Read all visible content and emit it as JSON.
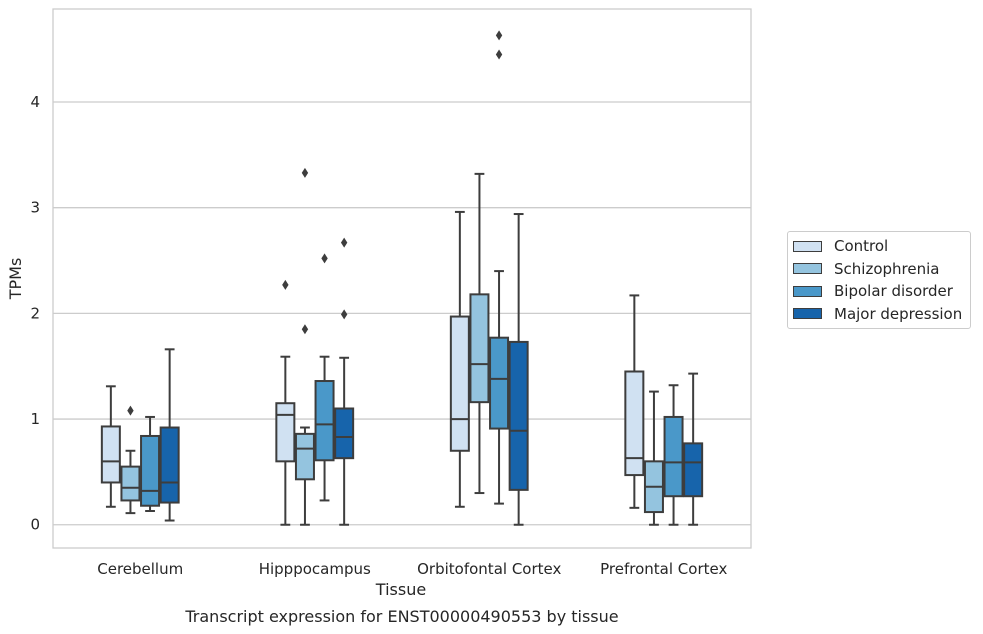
{
  "chart_data": {
    "type": "box",
    "title": "Transcript expression for ENST00000490553 by tissue",
    "xlabel": "Tissue",
    "ylabel": "TPMs",
    "ylim": [
      -0.22,
      4.88
    ],
    "yticks": [
      0,
      1,
      2,
      3,
      4
    ],
    "grid": "horizontal",
    "legend_position": "right",
    "categories": [
      "Cerebellum",
      "Hipppocampus",
      "Orbitofontal Cortex",
      "Prefrontal Cortex"
    ],
    "series": [
      {
        "name": "Control",
        "color": "#d0e1f2",
        "boxes": [
          {
            "whislo": 0.17,
            "q1": 0.4,
            "med": 0.6,
            "q3": 0.93,
            "whishi": 1.31,
            "fliers": []
          },
          {
            "whislo": 0.0,
            "q1": 0.6,
            "med": 1.04,
            "q3": 1.15,
            "whishi": 1.59,
            "fliers": [
              2.27
            ]
          },
          {
            "whislo": 0.17,
            "q1": 0.7,
            "med": 1.0,
            "q3": 1.97,
            "whishi": 2.96,
            "fliers": []
          },
          {
            "whislo": 0.16,
            "q1": 0.47,
            "med": 0.63,
            "q3": 1.45,
            "whishi": 2.17,
            "fliers": []
          }
        ]
      },
      {
        "name": "Schizophrenia",
        "color": "#94c4df",
        "boxes": [
          {
            "whislo": 0.11,
            "q1": 0.23,
            "med": 0.35,
            "q3": 0.55,
            "whishi": 0.7,
            "fliers": [
              1.08
            ]
          },
          {
            "whislo": 0.0,
            "q1": 0.43,
            "med": 0.72,
            "q3": 0.86,
            "whishi": 0.92,
            "fliers": [
              1.85,
              3.33
            ]
          },
          {
            "whislo": 0.3,
            "q1": 1.16,
            "med": 1.52,
            "q3": 2.18,
            "whishi": 3.32,
            "fliers": []
          },
          {
            "whislo": 0.0,
            "q1": 0.12,
            "med": 0.36,
            "q3": 0.6,
            "whishi": 1.26,
            "fliers": []
          }
        ]
      },
      {
        "name": "Bipolar disorder",
        "color": "#4a98c9",
        "boxes": [
          {
            "whislo": 0.13,
            "q1": 0.18,
            "med": 0.32,
            "q3": 0.84,
            "whishi": 1.02,
            "fliers": []
          },
          {
            "whislo": 0.23,
            "q1": 0.61,
            "med": 0.95,
            "q3": 1.36,
            "whishi": 1.59,
            "fliers": [
              2.52
            ]
          },
          {
            "whislo": 0.2,
            "q1": 0.91,
            "med": 1.38,
            "q3": 1.77,
            "whishi": 2.4,
            "fliers": [
              4.45,
              4.63
            ]
          },
          {
            "whislo": 0.0,
            "q1": 0.27,
            "med": 0.59,
            "q3": 1.02,
            "whishi": 1.32,
            "fliers": []
          }
        ]
      },
      {
        "name": "Major depression",
        "color": "#1764ab",
        "boxes": [
          {
            "whislo": 0.04,
            "q1": 0.21,
            "med": 0.4,
            "q3": 0.92,
            "whishi": 1.66,
            "fliers": []
          },
          {
            "whislo": 0.0,
            "q1": 0.63,
            "med": 0.83,
            "q3": 1.1,
            "whishi": 1.58,
            "fliers": [
              1.99,
              2.67
            ]
          },
          {
            "whislo": 0.0,
            "q1": 0.33,
            "med": 0.89,
            "q3": 1.73,
            "whishi": 2.94,
            "fliers": []
          },
          {
            "whislo": 0.0,
            "q1": 0.27,
            "med": 0.59,
            "q3": 0.77,
            "whishi": 1.43,
            "fliers": []
          }
        ]
      }
    ]
  },
  "style": {
    "gridColor": "#cccccc",
    "frameColor": "#cccccc",
    "lineColor": "#3d3d3d"
  }
}
